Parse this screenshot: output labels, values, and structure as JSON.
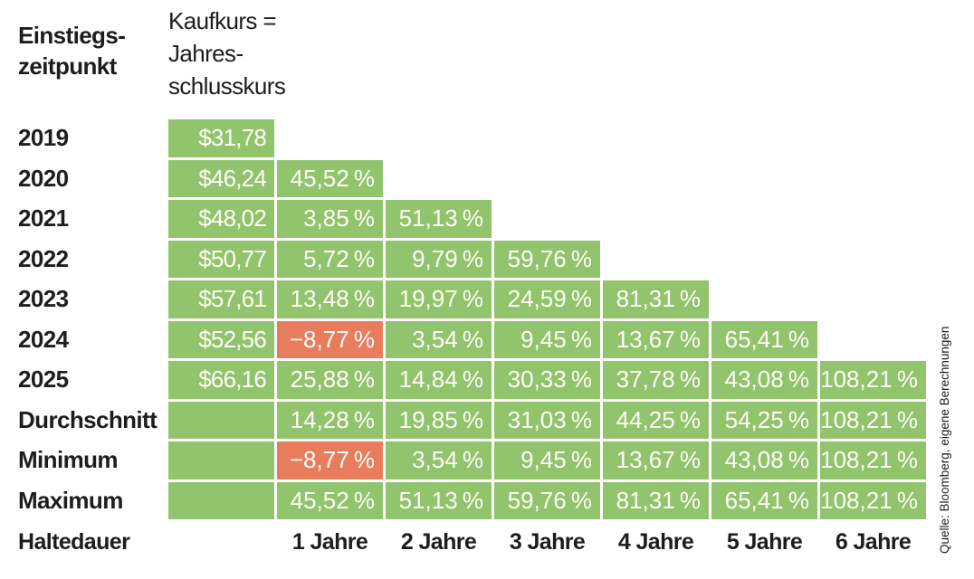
{
  "header": {
    "entry_label": "Einstiegs-\nzeitpunkt",
    "price_col_header": "Kaufkurs =\nJahres-\nschlusskurs"
  },
  "table": {
    "rows": [
      {
        "label": "2019",
        "cells": [
          {
            "text": "$31,78"
          }
        ]
      },
      {
        "label": "2020",
        "cells": [
          {
            "text": "$46,24"
          },
          {
            "text": "45,52 %"
          }
        ]
      },
      {
        "label": "2021",
        "cells": [
          {
            "text": "$48,02"
          },
          {
            "text": "3,85 %"
          },
          {
            "text": "51,13 %"
          }
        ]
      },
      {
        "label": "2022",
        "cells": [
          {
            "text": "$50,77"
          },
          {
            "text": "5,72 %"
          },
          {
            "text": "9,79 %"
          },
          {
            "text": "59,76 %"
          }
        ]
      },
      {
        "label": "2023",
        "cells": [
          {
            "text": "$57,61"
          },
          {
            "text": "13,48 %"
          },
          {
            "text": "19,97 %"
          },
          {
            "text": "24,59 %"
          },
          {
            "text": "81,31 %"
          }
        ]
      },
      {
        "label": "2024",
        "cells": [
          {
            "text": "$52,56"
          },
          {
            "text": "−8,77 %",
            "negative": true
          },
          {
            "text": "3,54 %"
          },
          {
            "text": "9,45 %"
          },
          {
            "text": "13,67 %"
          },
          {
            "text": "65,41 %"
          }
        ]
      },
      {
        "label": "2025",
        "cells": [
          {
            "text": "$66,16"
          },
          {
            "text": "25,88 %"
          },
          {
            "text": "14,84 %"
          },
          {
            "text": "30,33 %"
          },
          {
            "text": "37,78 %"
          },
          {
            "text": "43,08 %"
          },
          {
            "text": "108,21 %"
          }
        ]
      },
      {
        "label": "Durchschnitt",
        "cells": [
          {
            "text": ""
          },
          {
            "text": "14,28 %"
          },
          {
            "text": "19,85 %"
          },
          {
            "text": "31,03 %"
          },
          {
            "text": "44,25 %"
          },
          {
            "text": "54,25 %"
          },
          {
            "text": "108,21 %"
          }
        ]
      },
      {
        "label": "Minimum",
        "cells": [
          {
            "text": ""
          },
          {
            "text": "−8,77 %",
            "negative": true
          },
          {
            "text": "3,54 %"
          },
          {
            "text": "9,45 %"
          },
          {
            "text": "13,67 %"
          },
          {
            "text": "43,08 %"
          },
          {
            "text": "108,21 %"
          }
        ]
      },
      {
        "label": "Maximum",
        "cells": [
          {
            "text": ""
          },
          {
            "text": "45,52 %"
          },
          {
            "text": "51,13 %"
          },
          {
            "text": "59,76 %"
          },
          {
            "text": "81,31 %"
          },
          {
            "text": "65,41 %"
          },
          {
            "text": "108,21 %"
          }
        ]
      }
    ]
  },
  "footer": {
    "label": "Haltedauer",
    "columns": [
      "1 Jahre",
      "2 Jahre",
      "3 Jahre",
      "4 Jahre",
      "5 Jahre",
      "6 Jahre"
    ]
  },
  "source_note": "Quelle: Bloomberg, eigene Berechnungen",
  "colors": {
    "positive_cell": "#91c46d",
    "negative_cell": "#e87d5e",
    "cell_text": "#fdfdf6",
    "label_text": "#1d1d1b"
  },
  "chart_data": {
    "type": "table",
    "title": "",
    "row_dimension": "Einstiegszeitpunkt",
    "column_dimension": "Haltedauer",
    "price_column_label": "Kaufkurs = Jahresschlusskurs",
    "holding_periods": [
      "1 Jahre",
      "2 Jahre",
      "3 Jahre",
      "4 Jahre",
      "5 Jahre",
      "6 Jahre"
    ],
    "rows": [
      {
        "label": "2019",
        "kaufkurs_usd": 31.78,
        "returns_pct": []
      },
      {
        "label": "2020",
        "kaufkurs_usd": 46.24,
        "returns_pct": [
          45.52
        ]
      },
      {
        "label": "2021",
        "kaufkurs_usd": 48.02,
        "returns_pct": [
          3.85,
          51.13
        ]
      },
      {
        "label": "2022",
        "kaufkurs_usd": 50.77,
        "returns_pct": [
          5.72,
          9.79,
          59.76
        ]
      },
      {
        "label": "2023",
        "kaufkurs_usd": 57.61,
        "returns_pct": [
          13.48,
          19.97,
          24.59,
          81.31
        ]
      },
      {
        "label": "2024",
        "kaufkurs_usd": 52.56,
        "returns_pct": [
          -8.77,
          3.54,
          9.45,
          13.67,
          65.41
        ]
      },
      {
        "label": "2025",
        "kaufkurs_usd": 66.16,
        "returns_pct": [
          25.88,
          14.84,
          30.33,
          37.78,
          43.08,
          108.21
        ]
      },
      {
        "label": "Durchschnitt",
        "kaufkurs_usd": null,
        "returns_pct": [
          14.28,
          19.85,
          31.03,
          44.25,
          54.25,
          108.21
        ]
      },
      {
        "label": "Minimum",
        "kaufkurs_usd": null,
        "returns_pct": [
          -8.77,
          3.54,
          9.45,
          13.67,
          43.08,
          108.21
        ]
      },
      {
        "label": "Maximum",
        "kaufkurs_usd": null,
        "returns_pct": [
          45.52,
          51.13,
          59.76,
          81.31,
          65.41,
          108.21
        ]
      }
    ],
    "negative_highlighted_cells": [
      {
        "row": "2024",
        "column": "1 Jahre",
        "value_pct": -8.77
      },
      {
        "row": "Minimum",
        "column": "1 Jahre",
        "value_pct": -8.77
      }
    ],
    "positive_color": "#91c46d",
    "negative_color": "#e87d5e",
    "source": "Quelle: Bloomberg, eigene Berechnungen"
  }
}
